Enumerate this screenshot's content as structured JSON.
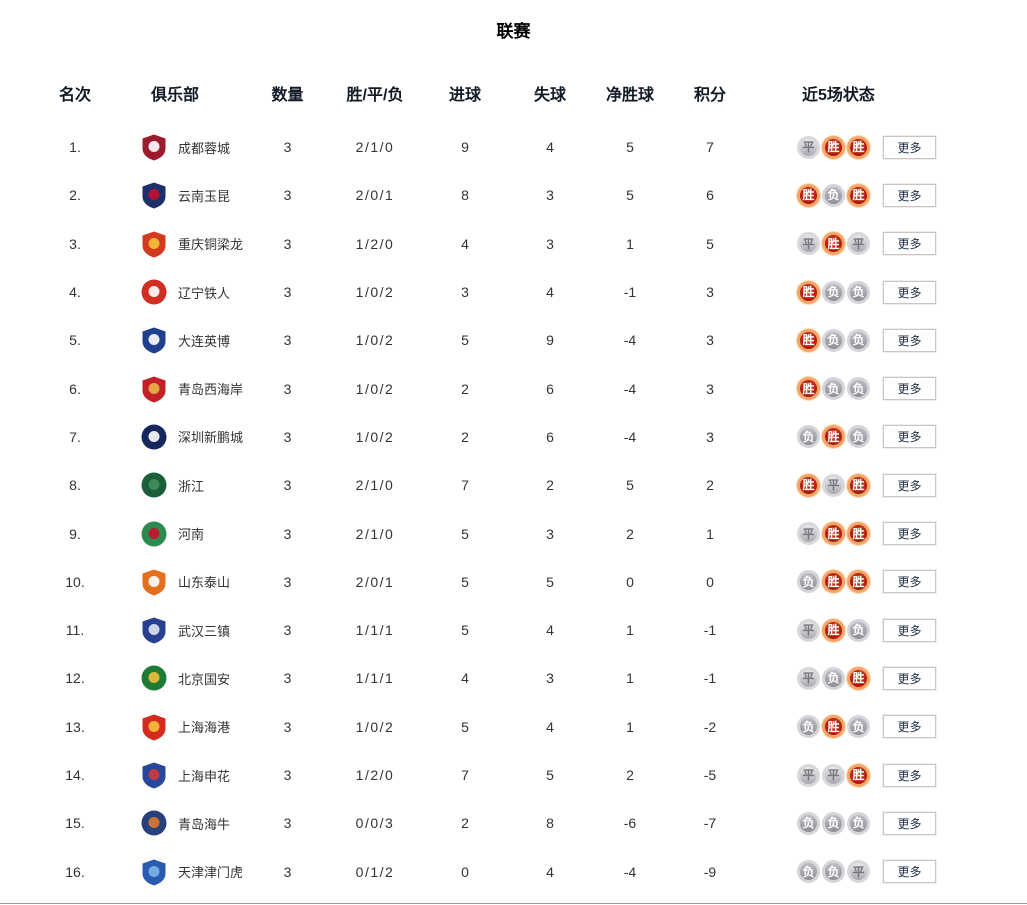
{
  "page": {
    "title": "联赛"
  },
  "table": {
    "headers": {
      "rank": "名次",
      "club": "俱乐部",
      "count": "数量",
      "wdl": "胜/平/负",
      "goals_for": "进球",
      "goals_against": "失球",
      "goal_diff": "净胜球",
      "points": "积分",
      "last5": "近5场状态"
    },
    "more_label": "更多",
    "badge_colors": {
      "win": "#a81708",
      "win_ring": "#f3a466",
      "draw": "#c6c6cc",
      "loss": "#9b9ba4"
    },
    "result_labels": {
      "win": "胜",
      "draw": "平",
      "loss": "负"
    },
    "rows": [
      {
        "rank": "1.",
        "club": "成都蓉城",
        "count": "3",
        "wdl": "2/1/0",
        "gf": "9",
        "ga": "4",
        "gd": "5",
        "pts": "7",
        "last5": [
          {
            "result": "draw",
            "label": "平"
          },
          {
            "result": "win",
            "label": "胜"
          },
          {
            "result": "win",
            "label": "胜"
          }
        ],
        "logo": {
          "shape": "shield",
          "primary": "#9a1c2e",
          "secondary": "#ffffff"
        }
      },
      {
        "rank": "2.",
        "club": "云南玉昆",
        "count": "3",
        "wdl": "2/0/1",
        "gf": "8",
        "ga": "3",
        "gd": "5",
        "pts": "6",
        "last5": [
          {
            "result": "win",
            "label": "胜"
          },
          {
            "result": "loss",
            "label": "负"
          },
          {
            "result": "win",
            "label": "胜"
          }
        ],
        "logo": {
          "shape": "shield",
          "primary": "#1c2f6b",
          "secondary": "#c8102e"
        }
      },
      {
        "rank": "3.",
        "club": "重庆铜梁龙",
        "count": "3",
        "wdl": "1/2/0",
        "gf": "4",
        "ga": "3",
        "gd": "1",
        "pts": "5",
        "last5": [
          {
            "result": "draw",
            "label": "平"
          },
          {
            "result": "win",
            "label": "胜"
          },
          {
            "result": "draw",
            "label": "平"
          }
        ],
        "logo": {
          "shape": "shield",
          "primary": "#d2391f",
          "secondary": "#f5c23c"
        }
      },
      {
        "rank": "4.",
        "club": "辽宁铁人",
        "count": "3",
        "wdl": "1/0/2",
        "gf": "3",
        "ga": "4",
        "gd": "-1",
        "pts": "3",
        "last5": [
          {
            "result": "win",
            "label": "胜"
          },
          {
            "result": "loss",
            "label": "负"
          },
          {
            "result": "loss",
            "label": "负"
          }
        ],
        "logo": {
          "shape": "circle",
          "primary": "#cf2e21",
          "secondary": "#ffffff"
        }
      },
      {
        "rank": "5.",
        "club": "大连英博",
        "count": "3",
        "wdl": "1/0/2",
        "gf": "5",
        "ga": "9",
        "gd": "-4",
        "pts": "3",
        "last5": [
          {
            "result": "win",
            "label": "胜"
          },
          {
            "result": "loss",
            "label": "负"
          },
          {
            "result": "loss",
            "label": "负"
          }
        ],
        "logo": {
          "shape": "shield",
          "primary": "#1f3f8f",
          "secondary": "#ffffff"
        }
      },
      {
        "rank": "6.",
        "club": "青岛西海岸",
        "count": "3",
        "wdl": "1/0/2",
        "gf": "2",
        "ga": "6",
        "gd": "-4",
        "pts": "3",
        "last5": [
          {
            "result": "win",
            "label": "胜"
          },
          {
            "result": "loss",
            "label": "负"
          },
          {
            "result": "loss",
            "label": "负"
          }
        ],
        "logo": {
          "shape": "shield",
          "primary": "#c32127",
          "secondary": "#e8b54a"
        }
      },
      {
        "rank": "7.",
        "club": "深圳新鹏城",
        "count": "3",
        "wdl": "1/0/2",
        "gf": "2",
        "ga": "6",
        "gd": "-4",
        "pts": "3",
        "last5": [
          {
            "result": "loss",
            "label": "负"
          },
          {
            "result": "win",
            "label": "胜"
          },
          {
            "result": "loss",
            "label": "负"
          }
        ],
        "logo": {
          "shape": "circle",
          "primary": "#16275e",
          "secondary": "#ffffff"
        }
      },
      {
        "rank": "8.",
        "club": "浙江",
        "count": "3",
        "wdl": "2/1/0",
        "gf": "7",
        "ga": "2",
        "gd": "5",
        "pts": "2",
        "last5": [
          {
            "result": "win",
            "label": "胜"
          },
          {
            "result": "draw",
            "label": "平"
          },
          {
            "result": "win",
            "label": "胜"
          }
        ],
        "logo": {
          "shape": "circle",
          "primary": "#1b5e38",
          "secondary": "#3f8f5c"
        }
      },
      {
        "rank": "9.",
        "club": "河南",
        "count": "3",
        "wdl": "2/1/0",
        "gf": "5",
        "ga": "3",
        "gd": "2",
        "pts": "1",
        "last5": [
          {
            "result": "draw",
            "label": "平"
          },
          {
            "result": "win",
            "label": "胜"
          },
          {
            "result": "win",
            "label": "胜"
          }
        ],
        "logo": {
          "shape": "circle",
          "primary": "#2e8b4f",
          "secondary": "#c8102e"
        }
      },
      {
        "rank": "10.",
        "club": "山东泰山",
        "count": "3",
        "wdl": "2/0/1",
        "gf": "5",
        "ga": "5",
        "gd": "0",
        "pts": "0",
        "last5": [
          {
            "result": "loss",
            "label": "负"
          },
          {
            "result": "win",
            "label": "胜"
          },
          {
            "result": "win",
            "label": "胜"
          }
        ],
        "logo": {
          "shape": "shield",
          "primary": "#e2701f",
          "secondary": "#ffffff"
        }
      },
      {
        "rank": "11.",
        "club": "武汉三镇",
        "count": "3",
        "wdl": "1/1/1",
        "gf": "5",
        "ga": "4",
        "gd": "1",
        "pts": "-1",
        "last5": [
          {
            "result": "draw",
            "label": "平"
          },
          {
            "result": "win",
            "label": "胜"
          },
          {
            "result": "loss",
            "label": "负"
          }
        ],
        "logo": {
          "shape": "shield",
          "primary": "#27408f",
          "secondary": "#dfe6f5"
        }
      },
      {
        "rank": "12.",
        "club": "北京国安",
        "count": "3",
        "wdl": "1/1/1",
        "gf": "4",
        "ga": "3",
        "gd": "1",
        "pts": "-1",
        "last5": [
          {
            "result": "draw",
            "label": "平"
          },
          {
            "result": "loss",
            "label": "负"
          },
          {
            "result": "win",
            "label": "胜"
          }
        ],
        "logo": {
          "shape": "circle",
          "primary": "#1f7a33",
          "secondary": "#f0c040"
        }
      },
      {
        "rank": "13.",
        "club": "上海海港",
        "count": "3",
        "wdl": "1/0/2",
        "gf": "5",
        "ga": "4",
        "gd": "1",
        "pts": "-2",
        "last5": [
          {
            "result": "loss",
            "label": "负"
          },
          {
            "result": "win",
            "label": "胜"
          },
          {
            "result": "loss",
            "label": "负"
          }
        ],
        "logo": {
          "shape": "shield",
          "primary": "#d42b1e",
          "secondary": "#f3c33b"
        }
      },
      {
        "rank": "14.",
        "club": "上海申花",
        "count": "3",
        "wdl": "1/2/0",
        "gf": "7",
        "ga": "5",
        "gd": "2",
        "pts": "-5",
        "last5": [
          {
            "result": "draw",
            "label": "平"
          },
          {
            "result": "draw",
            "label": "平"
          },
          {
            "result": "win",
            "label": "胜"
          }
        ],
        "logo": {
          "shape": "shield",
          "primary": "#27479a",
          "secondary": "#d03a3a"
        }
      },
      {
        "rank": "15.",
        "club": "青岛海牛",
        "count": "3",
        "wdl": "0/0/3",
        "gf": "2",
        "ga": "8",
        "gd": "-6",
        "pts": "-7",
        "last5": [
          {
            "result": "loss",
            "label": "负"
          },
          {
            "result": "loss",
            "label": "负"
          },
          {
            "result": "loss",
            "label": "负"
          }
        ],
        "logo": {
          "shape": "circle",
          "primary": "#27417a",
          "secondary": "#e07a2e"
        }
      },
      {
        "rank": "16.",
        "club": "天津津门虎",
        "count": "3",
        "wdl": "0/1/2",
        "gf": "0",
        "ga": "4",
        "gd": "-4",
        "pts": "-9",
        "last5": [
          {
            "result": "loss",
            "label": "负"
          },
          {
            "result": "loss",
            "label": "负"
          },
          {
            "result": "draw",
            "label": "平"
          }
        ],
        "logo": {
          "shape": "shield",
          "primary": "#2b5bb1",
          "secondary": "#7db5e8"
        }
      }
    ]
  }
}
